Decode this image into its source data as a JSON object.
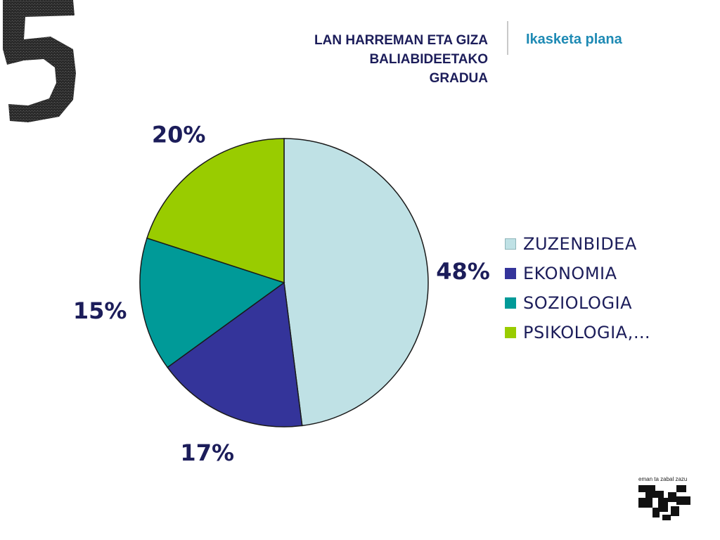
{
  "header": {
    "title_lines": [
      "LAN HARREMAN ETA GIZA",
      "BALIABIDEETAKO",
      "GRADUA"
    ],
    "link": "Ikasketa plana"
  },
  "chart_data": {
    "type": "pie",
    "categories": [
      "ZUZENBIDEA",
      "EKONOMIA",
      "SOZIOLOGIA",
      "PSIKOLOGIA,…"
    ],
    "values": [
      48,
      17,
      15,
      20
    ],
    "labels": [
      "48%",
      "17%",
      "15%",
      "20%"
    ],
    "colors": [
      "#bfe1e5",
      "#34349a",
      "#009a98",
      "#99cc00"
    ],
    "legend_position": "right"
  },
  "footer": {
    "motto": "eman ta zabal zazu",
    "logo_icon": "ehu-upv-logo"
  },
  "decoration": {
    "corner_icon": "number-five-brush-icon"
  }
}
